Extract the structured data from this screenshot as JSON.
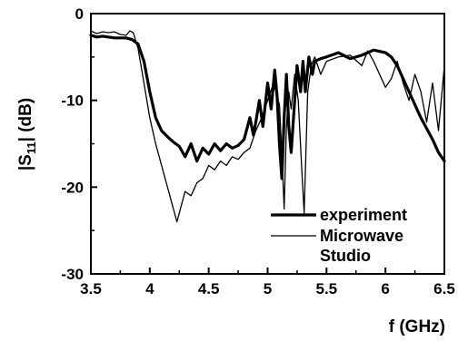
{
  "chart_data": {
    "type": "line",
    "title": "",
    "xlabel": "f (GHz)",
    "ylabel_parts": {
      "pre": "|S",
      "sub": "11",
      "post": "| (dB)"
    },
    "xlim": [
      3.5,
      6.5
    ],
    "ylim": [
      -30,
      0
    ],
    "x_ticks": [
      3.5,
      4,
      4.5,
      5,
      5.5,
      6,
      6.5
    ],
    "x_tick_labels": [
      "3.5",
      "4",
      "4.5",
      "5",
      "5.5",
      "6",
      "6.5"
    ],
    "y_ticks": [
      0,
      -10,
      -20,
      -30
    ],
    "y_tick_labels": [
      "0",
      "-10",
      "-20",
      "-30"
    ],
    "grid": false,
    "legend_position": "bottom-right",
    "series": [
      {
        "name": "experiment",
        "style": "thick",
        "x": [
          3.5,
          3.55,
          3.6,
          3.7,
          3.8,
          3.85,
          3.9,
          3.95,
          4.0,
          4.05,
          4.1,
          4.15,
          4.2,
          4.25,
          4.3,
          4.35,
          4.4,
          4.45,
          4.5,
          4.55,
          4.6,
          4.65,
          4.7,
          4.75,
          4.8,
          4.85,
          4.88,
          4.9,
          4.93,
          4.96,
          5.0,
          5.03,
          5.06,
          5.08,
          5.1,
          5.12,
          5.14,
          5.16,
          5.18,
          5.2,
          5.22,
          5.25,
          5.28,
          5.3,
          5.32,
          5.35,
          5.38,
          5.4,
          5.45,
          5.5,
          5.6,
          5.7,
          5.8,
          5.9,
          6.0,
          6.05,
          6.1,
          6.15,
          6.2,
          6.3,
          6.4,
          6.45,
          6.5
        ],
        "y": [
          -2.5,
          -2.7,
          -2.6,
          -2.8,
          -2.8,
          -3.0,
          -3.5,
          -5.5,
          -9.0,
          -12.0,
          -13.5,
          -14.2,
          -14.8,
          -15.3,
          -16.5,
          -15.0,
          -17.0,
          -15.5,
          -16.2,
          -15.0,
          -15.8,
          -15.0,
          -15.5,
          -15.2,
          -14.5,
          -12.0,
          -14.0,
          -12.5,
          -10.0,
          -13.0,
          -8.0,
          -11.0,
          -6.5,
          -9.5,
          -15.0,
          -19.0,
          -12.0,
          -7.0,
          -13.0,
          -16.0,
          -12.0,
          -6.0,
          -9.0,
          -5.5,
          -9.0,
          -5.0,
          -7.0,
          -5.5,
          -5.2,
          -5.0,
          -4.5,
          -5.2,
          -4.8,
          -4.2,
          -4.5,
          -5.0,
          -6.0,
          -7.5,
          -9.0,
          -12.0,
          -14.5,
          -16.0,
          -17.0
        ]
      },
      {
        "name": "Microwave Studio",
        "style": "thin",
        "x": [
          3.5,
          3.55,
          3.6,
          3.65,
          3.7,
          3.75,
          3.8,
          3.83,
          3.86,
          3.9,
          3.95,
          4.0,
          4.05,
          4.1,
          4.15,
          4.2,
          4.23,
          4.26,
          4.3,
          4.35,
          4.4,
          4.45,
          4.5,
          4.55,
          4.6,
          4.65,
          4.7,
          4.75,
          4.8,
          4.85,
          4.9,
          4.95,
          5.0,
          5.05,
          5.1,
          5.12,
          5.14,
          5.16,
          5.18,
          5.2,
          5.23,
          5.26,
          5.29,
          5.31,
          5.34,
          5.37,
          5.4,
          5.45,
          5.5,
          5.6,
          5.7,
          5.8,
          5.85,
          5.9,
          6.0,
          6.05,
          6.1,
          6.15,
          6.2,
          6.25,
          6.3,
          6.35,
          6.4,
          6.45,
          6.5
        ],
        "y": [
          -2.0,
          -2.3,
          -2.1,
          -2.2,
          -2.1,
          -2.4,
          -2.5,
          -2.0,
          -2.2,
          -4.0,
          -8.0,
          -12.0,
          -15.0,
          -17.5,
          -20.0,
          -22.5,
          -24.0,
          -22.5,
          -20.5,
          -21.0,
          -19.5,
          -19.0,
          -17.5,
          -18.0,
          -17.0,
          -17.5,
          -16.5,
          -16.8,
          -16.0,
          -15.5,
          -13.5,
          -12.0,
          -10.0,
          -8.0,
          -10.5,
          -16.0,
          -22.5,
          -13.0,
          -9.0,
          -11.0,
          -7.0,
          -10.0,
          -18.0,
          -23.0,
          -9.0,
          -6.0,
          -5.0,
          -7.0,
          -5.5,
          -5.0,
          -4.8,
          -6.0,
          -4.3,
          -5.5,
          -8.5,
          -7.5,
          -5.5,
          -8.0,
          -10.0,
          -7.0,
          -9.0,
          -12.5,
          -8.0,
          -13.5,
          -6.0
        ]
      }
    ]
  }
}
